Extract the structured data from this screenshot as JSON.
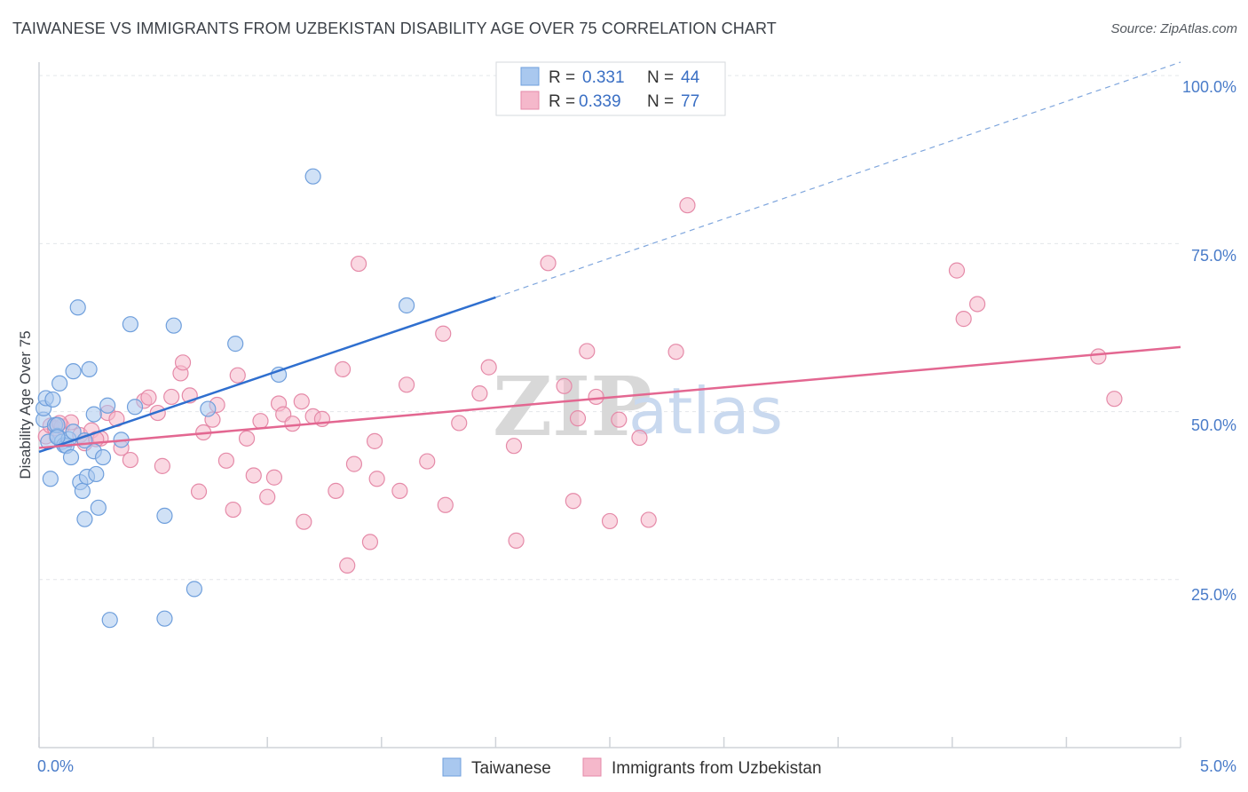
{
  "header": {
    "title": "TAIWANESE VS IMMIGRANTS FROM UZBEKISTAN DISABILITY AGE OVER 75 CORRELATION CHART",
    "source": "Source: ZipAtlas.com"
  },
  "watermark": {
    "zip": "ZIP",
    "atlas": "atlas"
  },
  "legend_box": {
    "rows": [
      {
        "r_label": "R =",
        "r_value": "0.331",
        "n_label": "N =",
        "n_value": "44",
        "color": "#a9c8ef"
      },
      {
        "r_label": "R =",
        "r_value": "0.339",
        "n_label": "N =",
        "n_value": "77",
        "color": "#f5b8cb"
      }
    ]
  },
  "chart_data": {
    "type": "scatter",
    "title": "TAIWANESE VS IMMIGRANTS FROM UZBEKISTAN DISABILITY AGE OVER 75 CORRELATION CHART",
    "xlabel": "",
    "ylabel": "Disability Age Over 75",
    "xlim": [
      0.0,
      5.0
    ],
    "ylim": [
      0.0,
      102.0
    ],
    "x_tick_labels": {
      "left": "0.0%",
      "right": "5.0%"
    },
    "y_ticks": [
      {
        "value": 25,
        "label": "25.0%"
      },
      {
        "value": 50,
        "label": "50.0%"
      },
      {
        "value": 75,
        "label": "75.0%"
      },
      {
        "value": 100,
        "label": "100.0%"
      }
    ],
    "grid": true,
    "legend_position": "bottom-center",
    "series": [
      {
        "name": "Taiwanese",
        "color": "#a9c8ef",
        "stroke": "#6f9fdc",
        "trend_color": "#2f6fcf",
        "trend": {
          "x0": 0.0,
          "y0": 44.0,
          "x1": 2.0,
          "y1": 67.0,
          "dashed_to_x": 5.0,
          "dashed_to_y": 102.0
        },
        "points": [
          [
            0.02,
            48.8
          ],
          [
            0.02,
            50.5
          ],
          [
            0.03,
            52.0
          ],
          [
            0.04,
            45.5
          ],
          [
            0.06,
            51.8
          ],
          [
            0.07,
            48.0
          ],
          [
            0.08,
            46.4
          ],
          [
            0.08,
            48.0
          ],
          [
            0.09,
            54.2
          ],
          [
            0.1,
            45.5
          ],
          [
            0.11,
            45.0
          ],
          [
            0.12,
            44.9
          ],
          [
            0.13,
            45.9
          ],
          [
            0.14,
            43.2
          ],
          [
            0.15,
            56.0
          ],
          [
            0.05,
            40.0
          ],
          [
            0.17,
            65.5
          ],
          [
            0.18,
            39.5
          ],
          [
            0.19,
            38.2
          ],
          [
            0.2,
            34.0
          ],
          [
            0.21,
            40.3
          ],
          [
            0.22,
            56.3
          ],
          [
            0.24,
            49.6
          ],
          [
            0.24,
            44.1
          ],
          [
            0.25,
            40.7
          ],
          [
            0.26,
            35.7
          ],
          [
            0.28,
            43.2
          ],
          [
            0.3,
            50.9
          ],
          [
            0.36,
            45.8
          ],
          [
            0.4,
            63.0
          ],
          [
            0.42,
            50.7
          ],
          [
            0.55,
            34.5
          ],
          [
            0.59,
            62.8
          ],
          [
            0.68,
            23.6
          ],
          [
            0.74,
            50.4
          ],
          [
            0.86,
            60.1
          ],
          [
            1.05,
            55.5
          ],
          [
            1.2,
            85.0
          ],
          [
            1.61,
            65.8
          ],
          [
            0.31,
            19.0
          ],
          [
            0.55,
            19.2
          ],
          [
            0.08,
            46.2
          ],
          [
            0.15,
            47.0
          ],
          [
            0.2,
            45.7
          ]
        ]
      },
      {
        "name": "Immigrants from Uzbekistan",
        "color": "#f5b8cb",
        "stroke": "#e58aa8",
        "trend_color": "#e36791",
        "trend": {
          "x0": 0.0,
          "y0": 44.6,
          "x1": 5.0,
          "y1": 59.6
        },
        "points": [
          [
            0.03,
            46.3
          ],
          [
            0.05,
            47.9
          ],
          [
            0.07,
            47.5
          ],
          [
            0.1,
            47.8
          ],
          [
            0.14,
            48.4
          ],
          [
            0.18,
            46.5
          ],
          [
            0.2,
            45.3
          ],
          [
            0.23,
            47.2
          ],
          [
            0.27,
            46.0
          ],
          [
            0.3,
            49.8
          ],
          [
            0.34,
            48.9
          ],
          [
            0.36,
            44.6
          ],
          [
            0.4,
            42.8
          ],
          [
            0.46,
            51.6
          ],
          [
            0.48,
            52.1
          ],
          [
            0.52,
            49.8
          ],
          [
            0.54,
            41.9
          ],
          [
            0.58,
            52.2
          ],
          [
            0.62,
            55.7
          ],
          [
            0.63,
            57.3
          ],
          [
            0.66,
            52.4
          ],
          [
            0.7,
            38.1
          ],
          [
            0.72,
            46.9
          ],
          [
            0.76,
            48.8
          ],
          [
            0.78,
            51.0
          ],
          [
            0.82,
            42.7
          ],
          [
            0.85,
            35.4
          ],
          [
            0.87,
            55.4
          ],
          [
            0.91,
            46.0
          ],
          [
            0.94,
            40.5
          ],
          [
            0.97,
            48.6
          ],
          [
            1.0,
            37.3
          ],
          [
            1.03,
            40.2
          ],
          [
            1.05,
            51.2
          ],
          [
            1.07,
            49.6
          ],
          [
            1.11,
            48.2
          ],
          [
            1.15,
            51.5
          ],
          [
            1.16,
            33.6
          ],
          [
            1.2,
            49.3
          ],
          [
            1.24,
            48.9
          ],
          [
            1.3,
            38.2
          ],
          [
            1.33,
            56.3
          ],
          [
            1.35,
            27.1
          ],
          [
            1.38,
            42.2
          ],
          [
            1.4,
            72.0
          ],
          [
            1.45,
            30.6
          ],
          [
            1.47,
            45.6
          ],
          [
            1.48,
            40.0
          ],
          [
            1.58,
            38.2
          ],
          [
            1.61,
            54.0
          ],
          [
            1.7,
            42.6
          ],
          [
            1.78,
            36.1
          ],
          [
            1.77,
            61.6
          ],
          [
            1.84,
            48.3
          ],
          [
            1.93,
            52.7
          ],
          [
            1.97,
            56.6
          ],
          [
            2.08,
            44.9
          ],
          [
            2.09,
            30.8
          ],
          [
            2.23,
            72.1
          ],
          [
            2.3,
            53.8
          ],
          [
            2.36,
            49.0
          ],
          [
            2.34,
            36.7
          ],
          [
            2.4,
            59.0
          ],
          [
            2.44,
            52.2
          ],
          [
            2.5,
            33.7
          ],
          [
            2.54,
            48.8
          ],
          [
            2.63,
            46.1
          ],
          [
            2.67,
            33.9
          ],
          [
            2.79,
            58.9
          ],
          [
            2.84,
            80.7
          ],
          [
            4.02,
            71.0
          ],
          [
            4.05,
            63.8
          ],
          [
            4.11,
            66.0
          ],
          [
            4.64,
            58.2
          ],
          [
            4.71,
            51.9
          ],
          [
            0.25,
            45.9
          ],
          [
            0.09,
            48.3
          ]
        ]
      }
    ]
  }
}
